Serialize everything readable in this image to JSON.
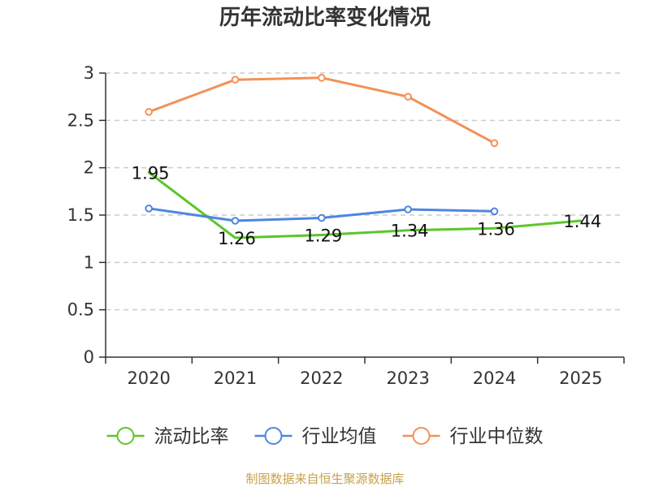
{
  "chart_data": {
    "type": "line",
    "title": "历年流动比率变化情况",
    "categories": [
      "2020",
      "2021",
      "2022",
      "2023",
      "2024",
      "2025"
    ],
    "ylim": [
      0,
      3
    ],
    "yticks": [
      "0",
      "0.5",
      "1",
      "1.5",
      "2",
      "2.5",
      "3"
    ],
    "ytick_values": [
      0,
      0.5,
      1,
      1.5,
      2,
      2.5,
      3
    ],
    "grid": true,
    "legend_position": "bottom",
    "series": [
      {
        "name": "流动比率",
        "color": "#5cc62a",
        "marker": false,
        "show_labels": true,
        "values": [
          1.95,
          1.26,
          1.29,
          1.34,
          1.36,
          1.44
        ],
        "labels": [
          "1.95",
          "1.26",
          "1.29",
          "1.34",
          "1.36",
          "1.44"
        ]
      },
      {
        "name": "行业均值",
        "color": "#4f86de",
        "marker": true,
        "show_labels": false,
        "values": [
          1.57,
          1.44,
          1.47,
          1.56,
          1.54,
          null
        ]
      },
      {
        "name": "行业中位数",
        "color": "#f39157",
        "marker": true,
        "show_labels": false,
        "values": [
          2.59,
          2.93,
          2.95,
          2.75,
          2.26,
          null
        ]
      }
    ]
  },
  "source": "制图数据来自恒生聚源数据库"
}
